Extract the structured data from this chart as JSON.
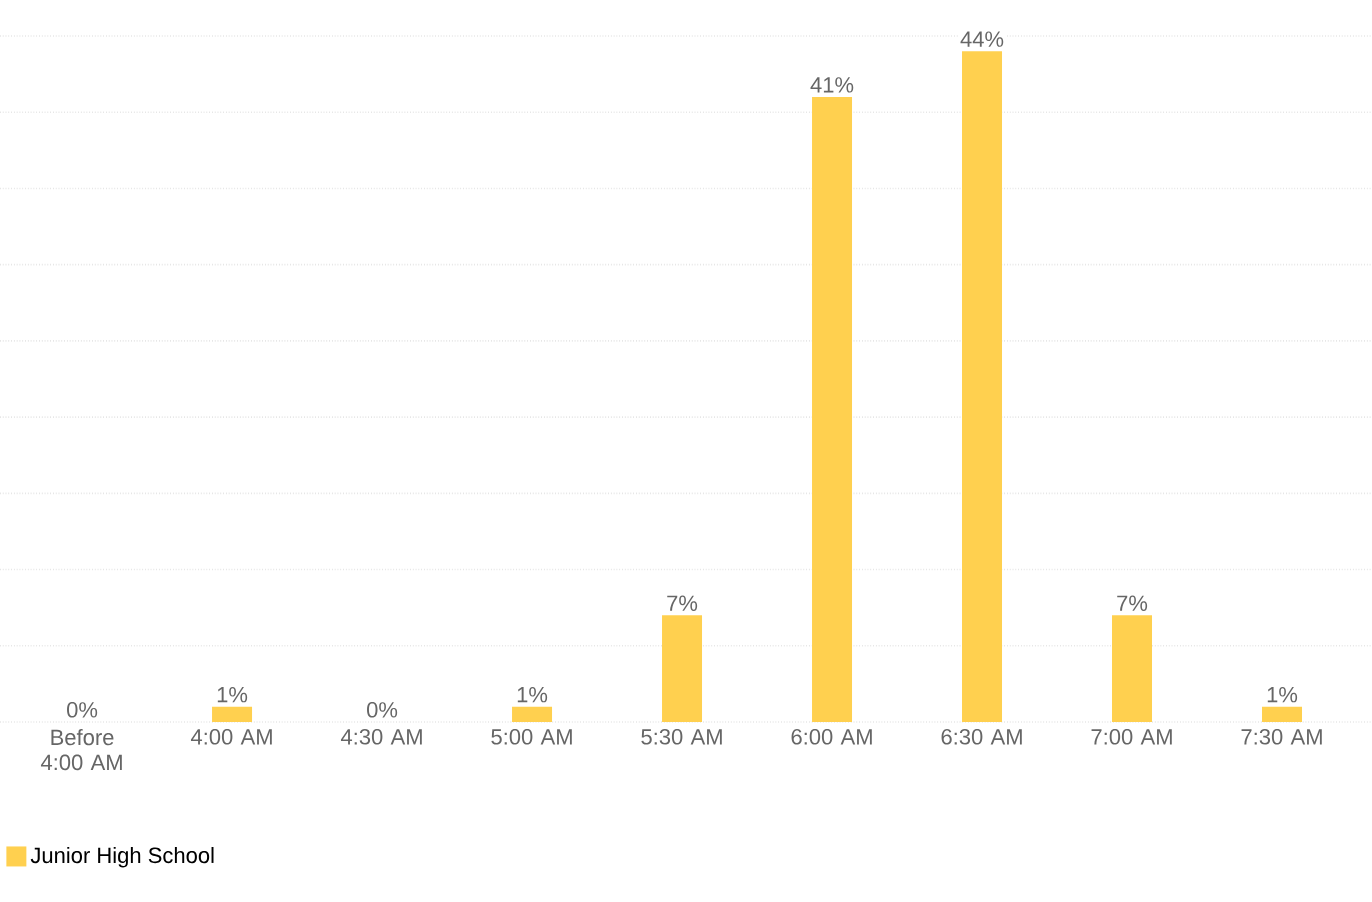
{
  "chart_data": {
    "type": "bar",
    "categories": [
      "Before 4:00 AM",
      "4:00 AM",
      "4:30 AM",
      "5:00 AM",
      "5:30 AM",
      "6:00 AM",
      "6:30 AM",
      "7:00 AM",
      "7:30 AM"
    ],
    "series": [
      {
        "name": "Junior High School",
        "color": "#ffd04f",
        "values": [
          0,
          1,
          0,
          1,
          7,
          41,
          44,
          7,
          1
        ],
        "value_labels": [
          "0%",
          "1%",
          "0%",
          "1%",
          "7%",
          "41%",
          "44%",
          "7%",
          "1%"
        ]
      }
    ],
    "ylim": [
      0,
      45
    ],
    "yticks": [
      {
        "value": 0,
        "label": null
      },
      {
        "value": 5,
        "label": null
      },
      {
        "value": 10,
        "label": null
      },
      {
        "value": 15,
        "label": null
      },
      {
        "value": 20,
        "label": null
      },
      {
        "value": 25,
        "label": null
      },
      {
        "value": 30,
        "label": null
      },
      {
        "value": 35,
        "label": null
      },
      {
        "value": 40,
        "label": null
      },
      {
        "value": 45,
        "label": null
      }
    ],
    "grid": "y",
    "legend": "bottom left",
    "tick_labels": "x"
  }
}
